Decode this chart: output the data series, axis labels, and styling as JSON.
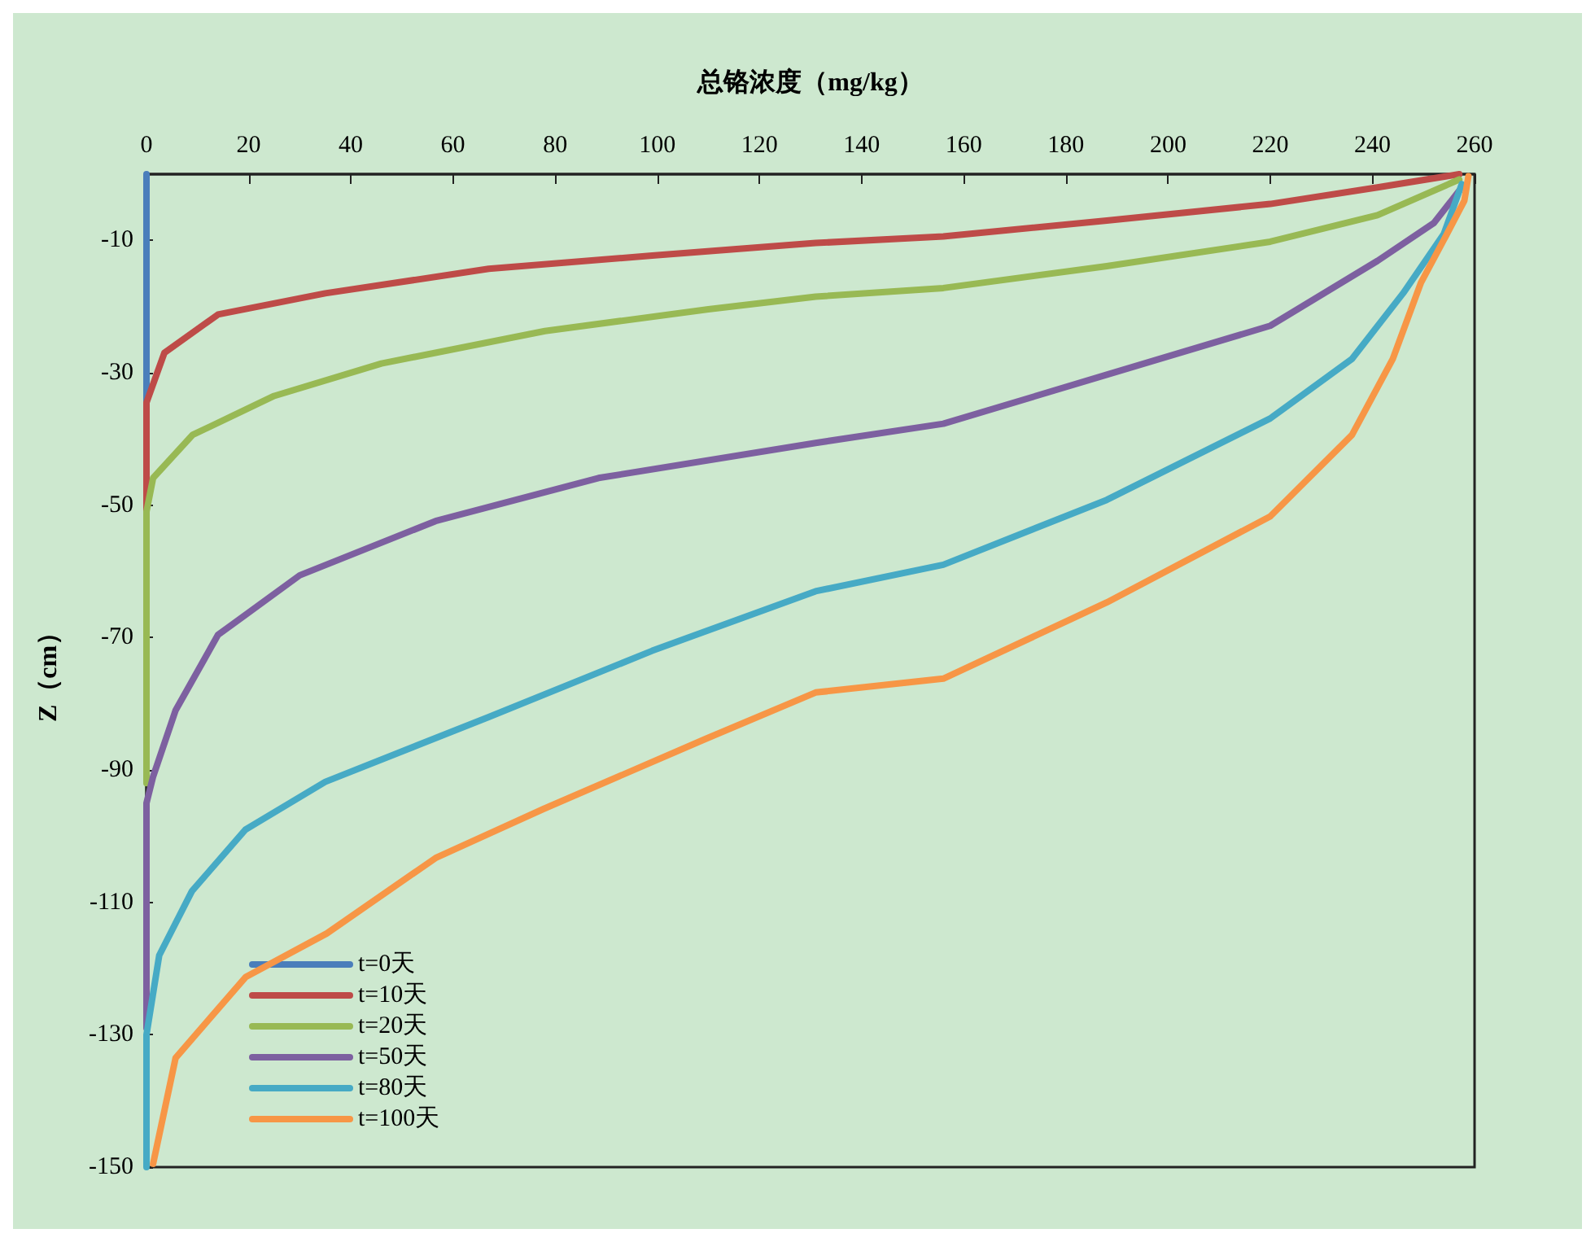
{
  "chart_data": {
    "type": "line",
    "xlabel": "总铬浓度（mg/kg）",
    "ylabel": "Z（cm）",
    "xlim": [
      0,
      260
    ],
    "xticks": [
      0,
      20,
      40,
      60,
      80,
      100,
      120,
      140,
      160,
      180,
      200,
      220,
      240,
      260
    ],
    "ylim": [
      -150,
      0
    ],
    "yticks": [
      -10,
      -30,
      -50,
      -70,
      -90,
      -110,
      -130,
      -150
    ],
    "grid": false,
    "legend": "bottom left",
    "marker": "none",
    "line_style": "solid",
    "series": [
      {
        "name": "t=0天",
        "color": "#4a7ebb",
        "x": [
          0,
          0
        ],
        "values": [
          0,
          -34.5
        ]
      },
      {
        "name": "t=10天",
        "color": "#be4b48",
        "x": [
          257,
          241,
          220,
          188,
          156,
          131,
          99,
          67,
          35,
          14,
          3.5,
          0,
          0
        ],
        "values": [
          0,
          -2,
          -4.5,
          -7,
          -9.4,
          -10.4,
          -12.3,
          -14.3,
          -18,
          -21.2,
          -27,
          -34.5,
          -51
        ]
      },
      {
        "name": "t=20天",
        "color": "#98b954",
        "x": [
          257,
          241,
          220,
          188,
          156,
          131,
          110,
          78,
          46,
          25,
          9,
          1.3,
          0,
          0
        ],
        "values": [
          -0.8,
          -6.2,
          -10.2,
          -13.9,
          -17.2,
          -18.5,
          -20.4,
          -23.7,
          -28.6,
          -33.5,
          -39.4,
          -45.9,
          -51,
          -92
        ]
      },
      {
        "name": "t=50天",
        "color": "#7d60a0",
        "x": [
          257,
          252,
          241,
          220,
          188,
          156,
          131,
          88.5,
          56.6,
          30,
          14,
          5.7,
          1.3,
          0,
          0
        ],
        "values": [
          -2.5,
          -7.4,
          -13.1,
          -22.9,
          -30.3,
          -37.7,
          -40.6,
          -45.9,
          -52.4,
          -60.6,
          -69.6,
          -81,
          -91,
          -95,
          -129
        ]
      },
      {
        "name": "t=80天",
        "color": "#46aac5",
        "x": [
          257.5,
          254,
          246,
          236,
          220,
          188,
          156,
          131,
          99,
          67,
          35,
          19.4,
          8.9,
          2.5,
          0,
          0
        ],
        "values": [
          -1.5,
          -9,
          -18,
          -27.9,
          -36.9,
          -49.2,
          -59,
          -63,
          -72,
          -82,
          -91.8,
          -99,
          -108.3,
          -118,
          -130,
          -150
        ]
      },
      {
        "name": "t=100天",
        "color": "#f79646",
        "x": [
          258.8,
          258,
          254,
          249.5,
          244,
          236,
          220,
          188,
          156,
          131,
          109.5,
          77.7,
          56.6,
          35.3,
          19.4,
          5.7,
          1.3
        ],
        "values": [
          -0.3,
          -4,
          -9.9,
          -16.4,
          -27.9,
          -39.4,
          -51.7,
          -64.7,
          -76.2,
          -78.3,
          -85.3,
          -95.9,
          -103.3,
          -114.7,
          -121.3,
          -133.5,
          -149.5
        ]
      }
    ]
  }
}
